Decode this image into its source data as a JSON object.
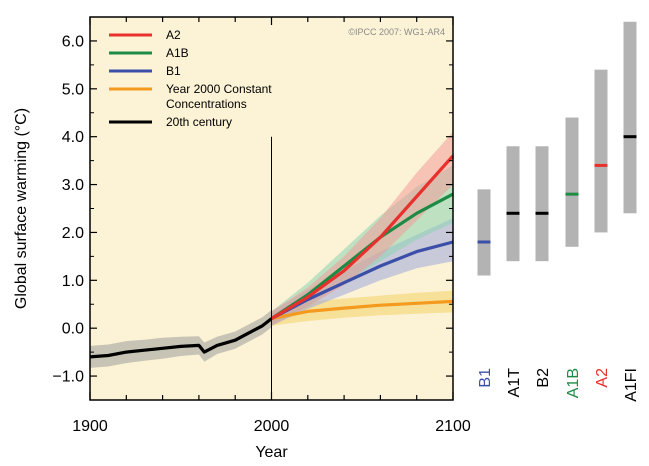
{
  "chart_data": {
    "type": "line",
    "xlabel": "Year",
    "ylabel": "Global surface warming (°C)",
    "copyright": "©IPCC 2007: WG1-AR4",
    "xlim": [
      1900,
      2100
    ],
    "ylim": [
      -1.5,
      6.5
    ],
    "xticks": [
      1900,
      2000,
      2100
    ],
    "yticks": [
      -1.0,
      0.0,
      1.0,
      2.0,
      3.0,
      4.0,
      5.0,
      6.0
    ],
    "ytick_labels": [
      "−1.0",
      "0.0",
      "1.0",
      "2.0",
      "3.0",
      "4.0",
      "5.0",
      "6.0"
    ],
    "marker_year": 2000,
    "legend_position": "top-left",
    "legend": [
      {
        "label": "A2",
        "color": "#e8302c"
      },
      {
        "label": "A1B",
        "color": "#1f8a45"
      },
      {
        "label": "B1",
        "color": "#3b4fa8"
      },
      {
        "label": "Year 2000 Constant",
        "label2": "Concentrations",
        "color": "#f39a1f"
      },
      {
        "label": "20th century",
        "color": "#000000"
      }
    ],
    "series": [
      {
        "name": "20th century",
        "color": "#000000",
        "band_color": "#9a9a9a",
        "x": [
          1900,
          1910,
          1920,
          1930,
          1940,
          1950,
          1960,
          1963,
          1970,
          1980,
          1990,
          1995,
          2000
        ],
        "y": [
          -0.6,
          -0.57,
          -0.5,
          -0.46,
          -0.42,
          -0.38,
          -0.36,
          -0.5,
          -0.36,
          -0.25,
          -0.05,
          0.05,
          0.2
        ],
        "lower": [
          -0.83,
          -0.8,
          -0.73,
          -0.68,
          -0.64,
          -0.58,
          -0.55,
          -0.7,
          -0.54,
          -0.43,
          -0.23,
          -0.13,
          0.02
        ],
        "upper": [
          -0.37,
          -0.34,
          -0.27,
          -0.24,
          -0.2,
          -0.18,
          -0.17,
          -0.3,
          -0.18,
          -0.07,
          0.13,
          0.23,
          0.38
        ]
      },
      {
        "name": "Year 2000 Constant Concentrations",
        "color": "#f39a1f",
        "band_color": "#f2d266",
        "x": [
          2000,
          2020,
          2040,
          2060,
          2080,
          2100
        ],
        "y": [
          0.2,
          0.35,
          0.42,
          0.48,
          0.52,
          0.56
        ],
        "lower": [
          0.05,
          0.15,
          0.22,
          0.27,
          0.3,
          0.33
        ],
        "upper": [
          0.35,
          0.55,
          0.62,
          0.68,
          0.74,
          0.78
        ]
      },
      {
        "name": "B1",
        "color": "#3b4fa8",
        "band_color": "#9fa8dc",
        "x": [
          2000,
          2020,
          2040,
          2060,
          2080,
          2100
        ],
        "y": [
          0.2,
          0.6,
          0.95,
          1.3,
          1.6,
          1.8
        ],
        "lower": [
          0.05,
          0.4,
          0.7,
          1.0,
          1.25,
          1.4
        ],
        "upper": [
          0.35,
          0.8,
          1.2,
          1.6,
          1.95,
          2.3
        ]
      },
      {
        "name": "A1B",
        "color": "#1f8a45",
        "band_color": "#8ad3b1",
        "x": [
          2000,
          2020,
          2040,
          2060,
          2080,
          2100
        ],
        "y": [
          0.2,
          0.7,
          1.3,
          1.9,
          2.4,
          2.8
        ],
        "lower": [
          0.05,
          0.45,
          0.95,
          1.4,
          1.85,
          2.2
        ],
        "upper": [
          0.35,
          0.95,
          1.65,
          2.35,
          2.95,
          3.4
        ]
      },
      {
        "name": "A2",
        "color": "#e8302c",
        "band_color": "#f09a9a",
        "x": [
          2000,
          2020,
          2040,
          2060,
          2080,
          2100
        ],
        "y": [
          0.2,
          0.65,
          1.2,
          1.9,
          2.75,
          3.6
        ],
        "lower": [
          0.05,
          0.45,
          0.9,
          1.5,
          2.25,
          3.0
        ],
        "upper": [
          0.35,
          0.85,
          1.5,
          2.3,
          3.25,
          4.1
        ]
      }
    ],
    "ranges": [
      {
        "label": "B1",
        "color": "#3b4fa8",
        "low": 1.1,
        "high": 2.9,
        "best": 1.8
      },
      {
        "label": "A1T",
        "color": "#000000",
        "low": 1.4,
        "high": 3.8,
        "best": 2.4
      },
      {
        "label": "B2",
        "color": "#000000",
        "low": 1.4,
        "high": 3.8,
        "best": 2.4
      },
      {
        "label": "A1B",
        "color": "#1f8a45",
        "low": 1.7,
        "high": 4.4,
        "best": 2.8
      },
      {
        "label": "A2",
        "color": "#e8302c",
        "low": 2.0,
        "high": 5.4,
        "best": 3.4
      },
      {
        "label": "A1FI",
        "color": "#000000",
        "low": 2.4,
        "high": 6.4,
        "best": 4.0
      }
    ]
  }
}
